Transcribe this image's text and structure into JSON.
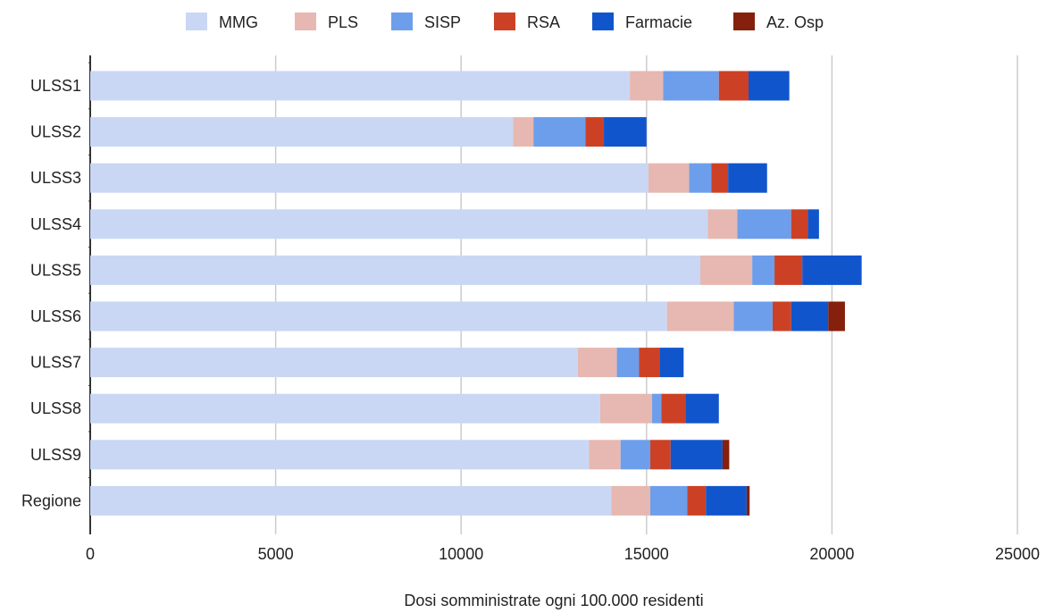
{
  "chart_data": {
    "type": "bar",
    "orientation": "horizontal",
    "stacked": true,
    "title": "",
    "xlabel": "Dosi somministrate ogni 100.000 residenti",
    "ylabel": "",
    "xlim": [
      0,
      25000
    ],
    "xticks": [
      0,
      5000,
      10000,
      15000,
      20000,
      25000
    ],
    "xtick_labels": [
      "0",
      "5000",
      "10000",
      "15000",
      "20000",
      "25000"
    ],
    "grid": true,
    "legend_position": "top",
    "categories": [
      "ULSS1",
      "ULSS2",
      "ULSS3",
      "ULSS4",
      "ULSS5",
      "ULSS6",
      "ULSS7",
      "ULSS8",
      "ULSS9",
      "Regione"
    ],
    "series": [
      {
        "name": "MMG",
        "color": "#c9d7f4",
        "values": [
          14550,
          11400,
          15050,
          16650,
          16450,
          15550,
          13150,
          13750,
          13450,
          14050
        ]
      },
      {
        "name": "PLS",
        "color": "#e6b8b1",
        "values": [
          900,
          550,
          1100,
          800,
          1400,
          1800,
          1050,
          1400,
          850,
          1050
        ]
      },
      {
        "name": "SISP",
        "color": "#6d9eeb",
        "values": [
          1500,
          1400,
          600,
          1450,
          600,
          1050,
          600,
          250,
          800,
          1000
        ]
      },
      {
        "name": "RSA",
        "color": "#cc4125",
        "values": [
          800,
          500,
          450,
          450,
          750,
          500,
          550,
          650,
          550,
          500
        ]
      },
      {
        "name": "Farmacie",
        "color": "#1155cc",
        "values": [
          1100,
          1150,
          1050,
          300,
          1600,
          1000,
          650,
          900,
          1400,
          1100
        ]
      },
      {
        "name": "Az. Osp",
        "color": "#85200c",
        "values": [
          0,
          0,
          0,
          0,
          0,
          450,
          0,
          0,
          180,
          80
        ]
      }
    ]
  }
}
